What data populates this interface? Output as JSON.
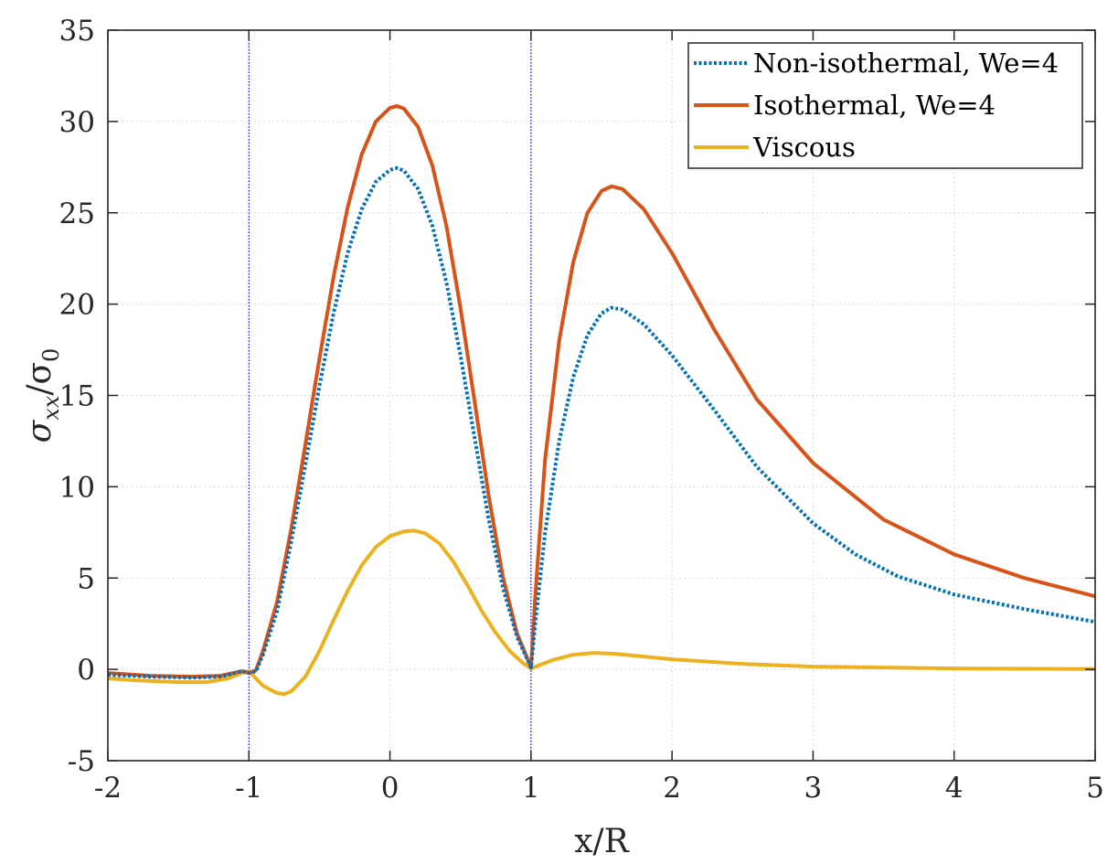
{
  "chart_data": {
    "type": "line",
    "xlabel": "x/R",
    "ylabel": "σ",
    "ylabel_sub1": "xx",
    "ylabel_sep": "/σ",
    "ylabel_sub2": "0",
    "xlim": [
      -2,
      5
    ],
    "ylim": [
      -5,
      35
    ],
    "xticks": [
      -2,
      -1,
      0,
      1,
      2,
      3,
      4,
      5
    ],
    "yticks": [
      -5,
      0,
      5,
      10,
      15,
      20,
      25,
      30,
      35
    ],
    "xtick_labels": [
      "-2",
      "-1",
      "0",
      "1",
      "2",
      "3",
      "4",
      "5"
    ],
    "ytick_labels": [
      "-5",
      "0",
      "5",
      "10",
      "15",
      "20",
      "25",
      "30",
      "35"
    ],
    "grid": true,
    "legend_position": "top-right",
    "vertical_lines": [
      -1,
      1
    ],
    "series": [
      {
        "name": "Non-isothermal, We=4",
        "color": "#0072BD",
        "style": "dotted",
        "points": [
          [
            -2,
            -0.3
          ],
          [
            -1.7,
            -0.4
          ],
          [
            -1.4,
            -0.45
          ],
          [
            -1.2,
            -0.4
          ],
          [
            -1.05,
            -0.1
          ],
          [
            -1,
            -0.2
          ],
          [
            -0.95,
            -0.1
          ],
          [
            -0.9,
            0.8
          ],
          [
            -0.8,
            3.2
          ],
          [
            -0.7,
            7.0
          ],
          [
            -0.6,
            11.2
          ],
          [
            -0.5,
            15.5
          ],
          [
            -0.4,
            19.5
          ],
          [
            -0.3,
            22.8
          ],
          [
            -0.2,
            25.2
          ],
          [
            -0.1,
            26.7
          ],
          [
            0,
            27.35
          ],
          [
            0.05,
            27.45
          ],
          [
            0.1,
            27.3
          ],
          [
            0.2,
            26.3
          ],
          [
            0.3,
            24.3
          ],
          [
            0.4,
            21.2
          ],
          [
            0.5,
            17.2
          ],
          [
            0.6,
            12.7
          ],
          [
            0.7,
            8.2
          ],
          [
            0.8,
            4.5
          ],
          [
            0.9,
            1.8
          ],
          [
            1,
            0.1
          ],
          [
            1.03,
            2.5
          ],
          [
            1.1,
            7.5
          ],
          [
            1.2,
            12.5
          ],
          [
            1.3,
            16.0
          ],
          [
            1.4,
            18.3
          ],
          [
            1.5,
            19.5
          ],
          [
            1.57,
            19.8
          ],
          [
            1.65,
            19.7
          ],
          [
            1.8,
            18.9
          ],
          [
            2,
            17.2
          ],
          [
            2.3,
            14.2
          ],
          [
            2.6,
            11.1
          ],
          [
            3,
            8.0
          ],
          [
            3.3,
            6.3
          ],
          [
            3.6,
            5.1
          ],
          [
            4,
            4.1
          ],
          [
            4.5,
            3.3
          ],
          [
            5,
            2.6
          ]
        ]
      },
      {
        "name": "Isothermal, We=4",
        "color": "#D95319",
        "style": "solid",
        "points": [
          [
            -2,
            -0.2
          ],
          [
            -1.7,
            -0.35
          ],
          [
            -1.4,
            -0.4
          ],
          [
            -1.2,
            -0.35
          ],
          [
            -1.05,
            -0.1
          ],
          [
            -1,
            -0.2
          ],
          [
            -0.95,
            -0.05
          ],
          [
            -0.9,
            1.0
          ],
          [
            -0.8,
            3.7
          ],
          [
            -0.7,
            7.7
          ],
          [
            -0.6,
            12.3
          ],
          [
            -0.5,
            17.0
          ],
          [
            -0.4,
            21.5
          ],
          [
            -0.3,
            25.3
          ],
          [
            -0.2,
            28.2
          ],
          [
            -0.1,
            30.0
          ],
          [
            0,
            30.75
          ],
          [
            0.05,
            30.85
          ],
          [
            0.1,
            30.7
          ],
          [
            0.2,
            29.7
          ],
          [
            0.3,
            27.6
          ],
          [
            0.4,
            24.3
          ],
          [
            0.5,
            19.8
          ],
          [
            0.6,
            14.7
          ],
          [
            0.7,
            9.5
          ],
          [
            0.8,
            5.1
          ],
          [
            0.9,
            2.0
          ],
          [
            1,
            0.1
          ],
          [
            1.03,
            4.0
          ],
          [
            1.1,
            11.5
          ],
          [
            1.2,
            18.0
          ],
          [
            1.3,
            22.3
          ],
          [
            1.4,
            25.0
          ],
          [
            1.5,
            26.2
          ],
          [
            1.57,
            26.45
          ],
          [
            1.65,
            26.3
          ],
          [
            1.8,
            25.2
          ],
          [
            2,
            22.8
          ],
          [
            2.3,
            18.6
          ],
          [
            2.6,
            14.8
          ],
          [
            3,
            11.3
          ],
          [
            3.5,
            8.2
          ],
          [
            4,
            6.3
          ],
          [
            4.5,
            5.0
          ],
          [
            5,
            4.0
          ]
        ]
      },
      {
        "name": "Viscous",
        "color": "#EDB120",
        "style": "solid",
        "points": [
          [
            -2,
            -0.5
          ],
          [
            -1.8,
            -0.6
          ],
          [
            -1.5,
            -0.7
          ],
          [
            -1.3,
            -0.7
          ],
          [
            -1.15,
            -0.5
          ],
          [
            -1.05,
            -0.2
          ],
          [
            -1,
            -0.1
          ],
          [
            -0.95,
            -0.5
          ],
          [
            -0.9,
            -0.9
          ],
          [
            -0.8,
            -1.3
          ],
          [
            -0.75,
            -1.35
          ],
          [
            -0.7,
            -1.2
          ],
          [
            -0.6,
            -0.4
          ],
          [
            -0.5,
            1.0
          ],
          [
            -0.4,
            2.7
          ],
          [
            -0.3,
            4.3
          ],
          [
            -0.2,
            5.7
          ],
          [
            -0.1,
            6.7
          ],
          [
            0,
            7.3
          ],
          [
            0.1,
            7.55
          ],
          [
            0.17,
            7.6
          ],
          [
            0.25,
            7.45
          ],
          [
            0.35,
            6.9
          ],
          [
            0.45,
            5.9
          ],
          [
            0.55,
            4.6
          ],
          [
            0.65,
            3.2
          ],
          [
            0.75,
            2.0
          ],
          [
            0.85,
            1.0
          ],
          [
            0.95,
            0.3
          ],
          [
            1,
            0.05
          ],
          [
            1.05,
            0.2
          ],
          [
            1.15,
            0.5
          ],
          [
            1.3,
            0.8
          ],
          [
            1.45,
            0.9
          ],
          [
            1.6,
            0.85
          ],
          [
            1.8,
            0.7
          ],
          [
            2,
            0.55
          ],
          [
            2.5,
            0.3
          ],
          [
            3,
            0.15
          ],
          [
            4,
            0.05
          ],
          [
            5,
            0.02
          ]
        ]
      }
    ]
  }
}
